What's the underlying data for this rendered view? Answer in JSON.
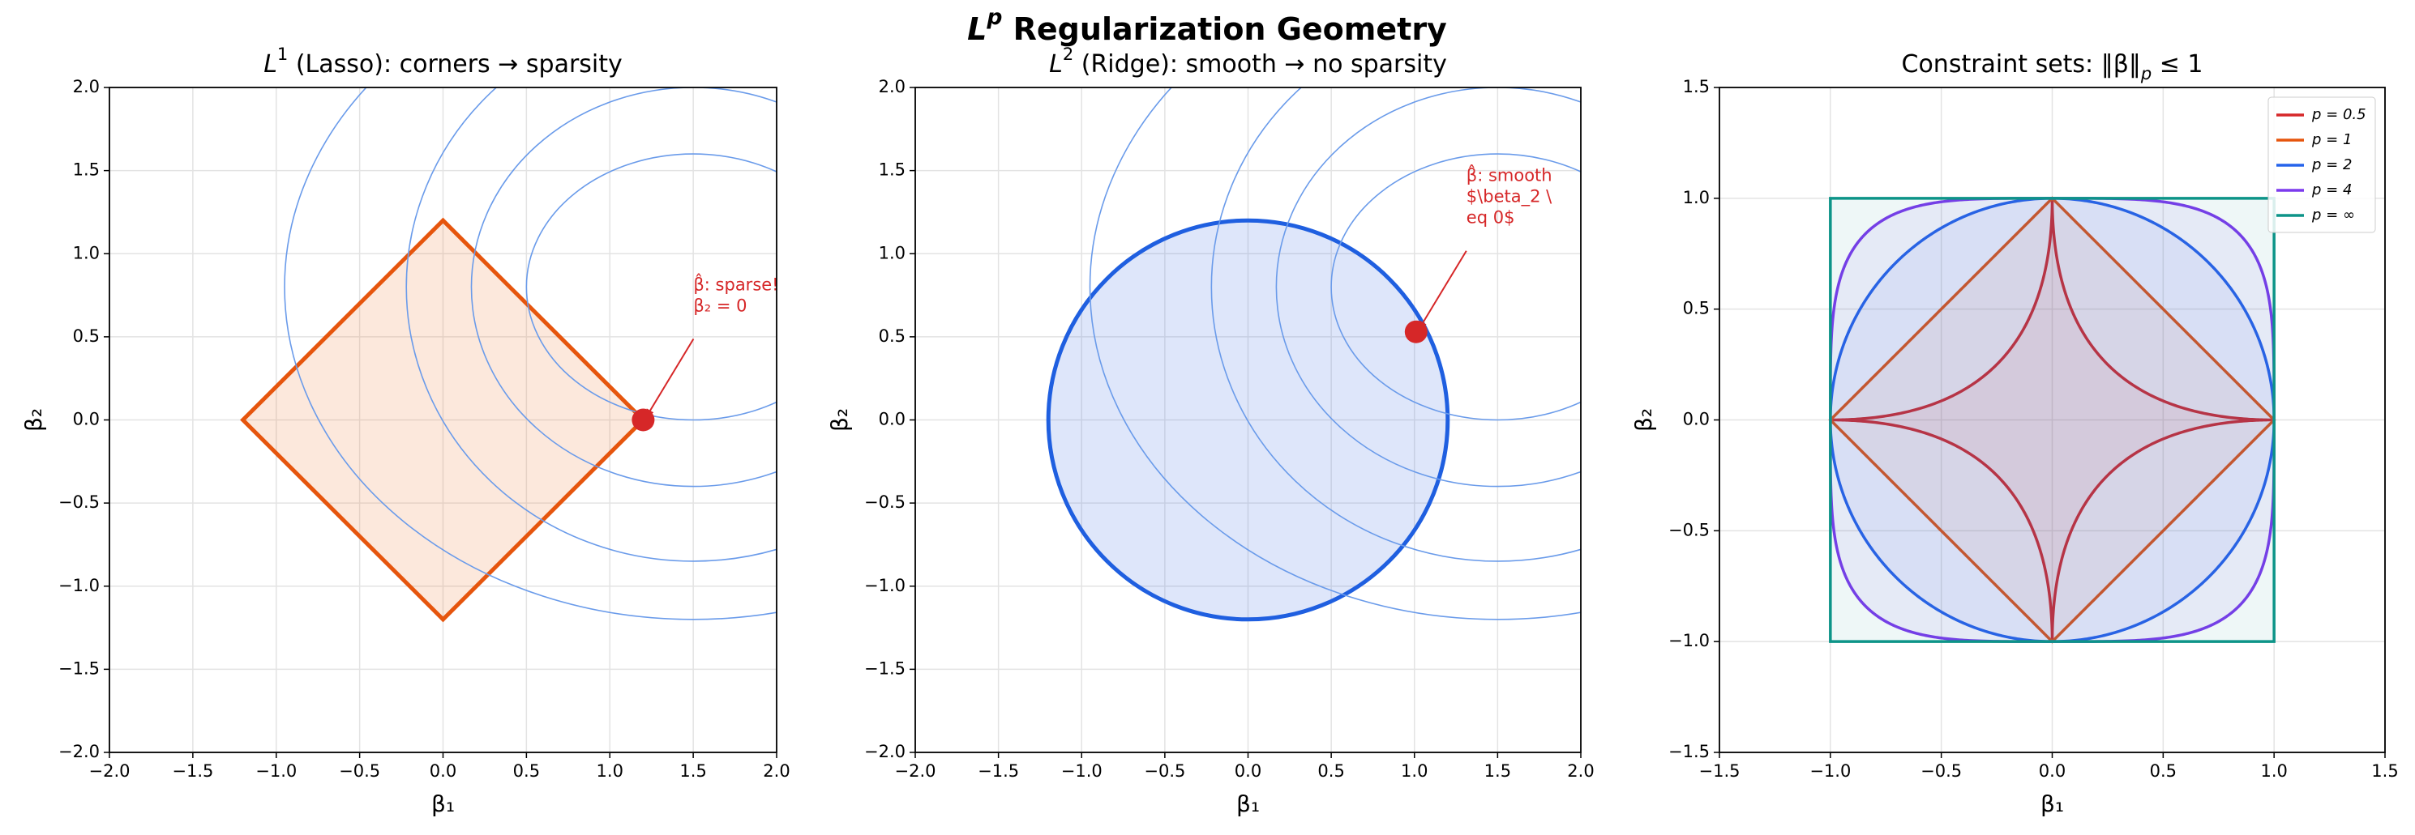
{
  "title": [
    {
      "text": "L",
      "style": "italic"
    },
    {
      "text": "p",
      "shift": "super",
      "style": "italic"
    },
    {
      "text": " Regularization Geometry"
    }
  ],
  "chart_data": [
    {
      "type": "contour",
      "title": [
        {
          "text": "L",
          "style": "italic"
        },
        {
          "text": "1",
          "shift": "super"
        },
        {
          "text": " (Lasso): corners → sparsity"
        }
      ],
      "xlabel": "β₁",
      "ylabel": "β₂",
      "xlim": [
        -2,
        2
      ],
      "ylim": [
        -2,
        2
      ],
      "xticks": [
        {
          "value": -2,
          "label": "−2.0"
        },
        {
          "value": -1.5,
          "label": "−1.5"
        },
        {
          "value": -1,
          "label": "−1.0"
        },
        {
          "value": -0.5,
          "label": "−0.5"
        },
        {
          "value": 0,
          "label": "0.0"
        },
        0.5,
        {
          "value": 1,
          "label": "1.0"
        },
        1.5,
        {
          "value": 2,
          "label": "2.0"
        }
      ],
      "yticks": [
        {
          "value": -2,
          "label": "−2.0"
        },
        {
          "value": -1.5,
          "label": "−1.5"
        },
        {
          "value": -1,
          "label": "−1.0"
        },
        {
          "value": -0.5,
          "label": "−0.5"
        },
        {
          "value": 0,
          "label": "0.0"
        },
        0.5,
        {
          "value": 1,
          "label": "1.0"
        },
        1.5,
        {
          "value": 2,
          "label": "2.0"
        }
      ],
      "grid": true,
      "contours": {
        "center": [
          1.5,
          0.8
        ],
        "rx": [
          1.0,
          1.33,
          1.72,
          2.45
        ],
        "ry": [
          0.8,
          1.2,
          1.65,
          2.0
        ],
        "color": "#6a9bea"
      },
      "constraint": {
        "shape": "diamond",
        "radius": 1.2,
        "color": "#e6550d",
        "fill": "rgba(240,140,80,0.2)"
      },
      "solution": {
        "x": 1.2,
        "y": 0,
        "color": "#d62728"
      },
      "annotation": [
        "β̂: sparse!",
        "β₂ = 0"
      ]
    },
    {
      "type": "contour",
      "title": [
        {
          "text": "L",
          "style": "italic"
        },
        {
          "text": "2",
          "shift": "super"
        },
        {
          "text": " (Ridge): smooth → no sparsity"
        }
      ],
      "xlabel": "β₁",
      "ylabel": "β₂",
      "xlim": [
        -2,
        2
      ],
      "ylim": [
        -2,
        2
      ],
      "xticks": [
        {
          "value": -2,
          "label": "−2.0"
        },
        {
          "value": -1.5,
          "label": "−1.5"
        },
        {
          "value": -1,
          "label": "−1.0"
        },
        {
          "value": -0.5,
          "label": "−0.5"
        },
        {
          "value": 0,
          "label": "0.0"
        },
        0.5,
        {
          "value": 1,
          "label": "1.0"
        },
        1.5,
        {
          "value": 2,
          "label": "2.0"
        }
      ],
      "yticks": [
        {
          "value": -2,
          "label": "−2.0"
        },
        {
          "value": -1.5,
          "label": "−1.5"
        },
        {
          "value": -1,
          "label": "−1.0"
        },
        {
          "value": -0.5,
          "label": "−0.5"
        },
        {
          "value": 0,
          "label": "0.0"
        },
        0.5,
        {
          "value": 1,
          "label": "1.0"
        },
        1.5,
        {
          "value": 2,
          "label": "2.0"
        }
      ],
      "grid": true,
      "contours": {
        "center": [
          1.5,
          0.8
        ],
        "rx": [
          1.0,
          1.33,
          1.72,
          2.45
        ],
        "ry": [
          0.8,
          1.2,
          1.65,
          2.0
        ],
        "color": "#6a9bea"
      },
      "constraint": {
        "shape": "circle",
        "radius": 1.2,
        "color": "#1f5fe0",
        "fill": "rgba(90,130,230,0.2)"
      },
      "solution": {
        "x": 1.01,
        "y": 0.53,
        "color": "#d62728"
      },
      "annotation": [
        "β̂: smooth",
        "$\\beta_2 \\",
        "eq 0$"
      ]
    },
    {
      "type": "unitball",
      "title": [
        {
          "text": "Constraint sets: ‖β‖"
        },
        {
          "text": "p",
          "shift": "sub",
          "style": "italic"
        },
        {
          "text": " ≤ 1"
        }
      ],
      "xlabel": "β₁",
      "ylabel": "β₂",
      "xlim": [
        -1.5,
        1.5
      ],
      "ylim": [
        -1.5,
        1.5
      ],
      "xticks": [
        {
          "value": -1.5,
          "label": "−1.5"
        },
        {
          "value": -1,
          "label": "−1.0"
        },
        {
          "value": -0.5,
          "label": "−0.5"
        },
        {
          "value": 0,
          "label": "0.0"
        },
        0.5,
        {
          "value": 1,
          "label": "1.0"
        },
        1.5
      ],
      "yticks": [
        {
          "value": -1.5,
          "label": "−1.5"
        },
        {
          "value": -1,
          "label": "−1.0"
        },
        {
          "value": -0.5,
          "label": "−0.5"
        },
        {
          "value": 0,
          "label": "0.0"
        },
        0.5,
        {
          "value": 1,
          "label": "1.0"
        },
        1.5
      ],
      "grid": true,
      "legend": "upper right",
      "series": [
        {
          "name": "p = 0.5",
          "p": 0.5,
          "color": "#d62728"
        },
        {
          "name": "p = 1",
          "p": 1,
          "color": "#e6550d"
        },
        {
          "name": "p = 2",
          "p": 2,
          "color": "#2563eb"
        },
        {
          "name": "p = 4",
          "p": 4,
          "color": "#7c3aed"
        },
        {
          "name": "p = ∞",
          "p": null,
          "color": "#0d9488"
        }
      ]
    }
  ]
}
